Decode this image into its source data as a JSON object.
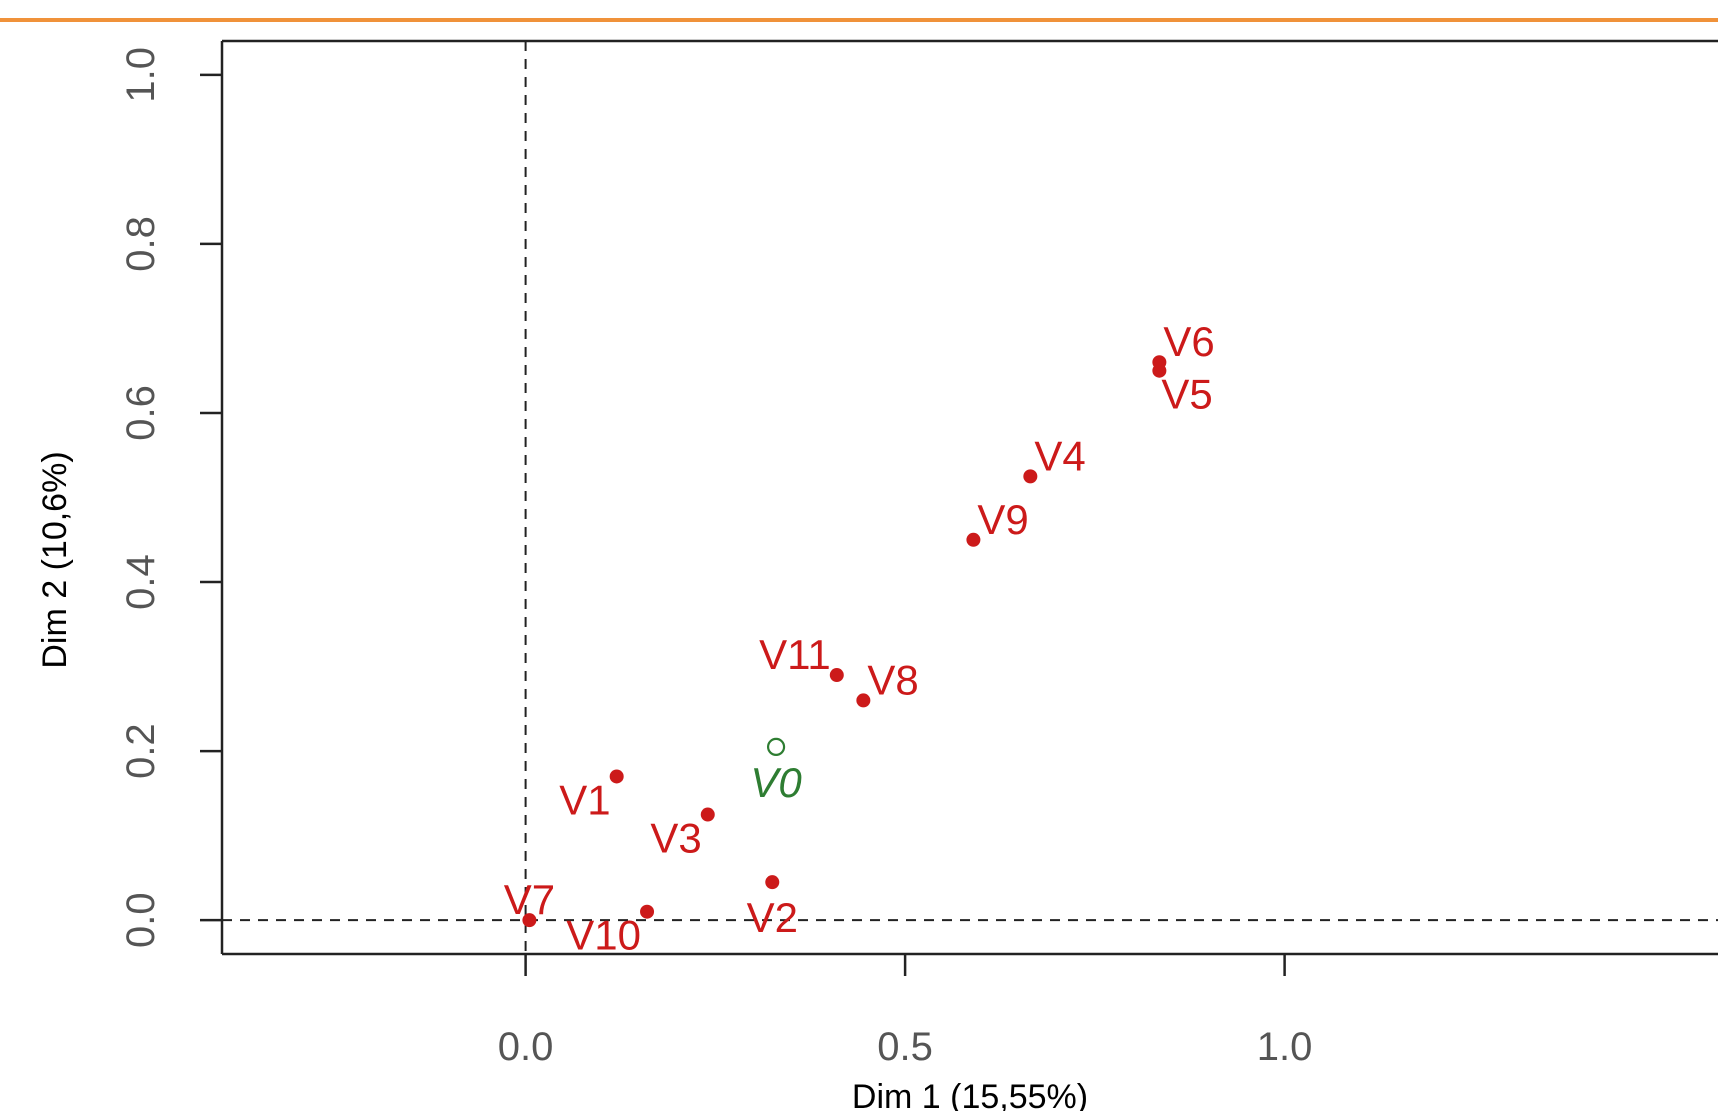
{
  "colors": {
    "top_rule": "#f0923a",
    "active_points": "#cc1a1a",
    "supplementary_points": "#2e7d32",
    "frame": "#222222",
    "reference_lines": "#222222"
  },
  "chart_data": {
    "type": "scatter",
    "title": "",
    "xlabel": "Dim 1 (15,55%)",
    "ylabel": "Dim 2 (10,6%)",
    "xlim": [
      -0.4,
      1.6
    ],
    "ylim": [
      -0.04,
      1.04
    ],
    "x_ticks": [
      0.0,
      0.5,
      1.0
    ],
    "x_tick_labels": [
      "0.0",
      "0.5",
      "1.0"
    ],
    "y_ticks": [
      0.0,
      0.2,
      0.4,
      0.6,
      0.8,
      1.0
    ],
    "y_tick_labels": [
      "0.0",
      "0.2",
      "0.4",
      "0.6",
      "0.8",
      "1.0"
    ],
    "reference_lines": {
      "x": 0,
      "y": 0,
      "style": "dashed"
    },
    "grid": false,
    "series": [
      {
        "role": "active",
        "marker": "filled-circle",
        "points": [
          {
            "label": "V1",
            "x": 0.12,
            "y": 0.17,
            "label_pos": "bottom-left"
          },
          {
            "label": "V2",
            "x": 0.325,
            "y": 0.045,
            "label_pos": "bottom"
          },
          {
            "label": "V3",
            "x": 0.24,
            "y": 0.125,
            "label_pos": "bottom-left"
          },
          {
            "label": "V4",
            "x": 0.665,
            "y": 0.525,
            "label_pos": "top-right"
          },
          {
            "label": "V5",
            "x": 0.835,
            "y": 0.65,
            "label_pos": "bottom-right"
          },
          {
            "label": "V6",
            "x": 0.835,
            "y": 0.66,
            "label_pos": "top-right"
          },
          {
            "label": "V7",
            "x": 0.005,
            "y": 0.0,
            "label_pos": "top"
          },
          {
            "label": "V8",
            "x": 0.445,
            "y": 0.26,
            "label_pos": "top-right"
          },
          {
            "label": "V9",
            "x": 0.59,
            "y": 0.45,
            "label_pos": "top-right"
          },
          {
            "label": "V10",
            "x": 0.16,
            "y": 0.01,
            "label_pos": "bottom-left"
          },
          {
            "label": "V11",
            "x": 0.41,
            "y": 0.29,
            "label_pos": "top-left"
          }
        ]
      },
      {
        "role": "supplementary",
        "marker": "open-circle",
        "points": [
          {
            "label": "V0",
            "x": 0.33,
            "y": 0.205,
            "label_pos": "bottom"
          }
        ]
      }
    ]
  }
}
